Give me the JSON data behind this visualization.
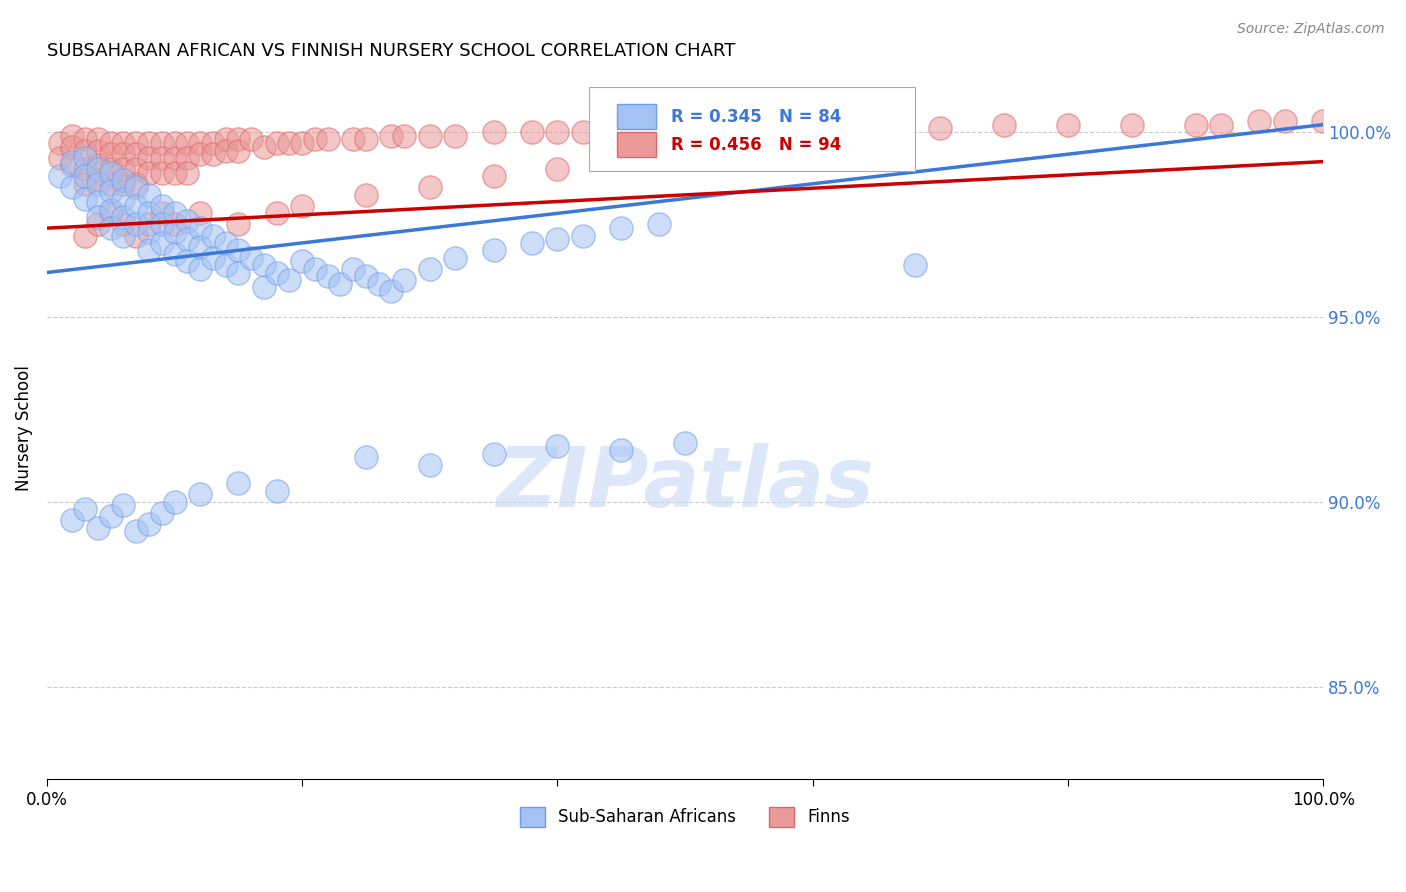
{
  "title": "SUBSAHARAN AFRICAN VS FINNISH NURSERY SCHOOL CORRELATION CHART",
  "source": "Source: ZipAtlas.com",
  "ylabel": "Nursery School",
  "ytick_values": [
    0.85,
    0.9,
    0.95,
    1.0
  ],
  "ytick_labels": [
    "85.0%",
    "90.0%",
    "95.0%",
    "100.0%"
  ],
  "xlim": [
    0.0,
    1.0
  ],
  "ylim": [
    0.825,
    1.015
  ],
  "legend_r_blue": "R = 0.345",
  "legend_n_blue": "N = 84",
  "legend_r_pink": "R = 0.456",
  "legend_n_pink": "N = 94",
  "legend_label_blue": "Sub-Saharan Africans",
  "legend_label_pink": "Finns",
  "blue_color": "#a4c2f4",
  "pink_color": "#ea9999",
  "blue_edge_color": "#6d9eeb",
  "pink_edge_color": "#e06666",
  "blue_line_color": "#3c78d8",
  "pink_line_color": "#cc0000",
  "text_blue": "#3c78d8",
  "text_pink": "#cc0000",
  "watermark": "ZIPatlas",
  "blue_scatter_x": [
    0.01,
    0.02,
    0.02,
    0.03,
    0.03,
    0.03,
    0.04,
    0.04,
    0.04,
    0.04,
    0.05,
    0.05,
    0.05,
    0.05,
    0.06,
    0.06,
    0.06,
    0.06,
    0.07,
    0.07,
    0.07,
    0.08,
    0.08,
    0.08,
    0.08,
    0.09,
    0.09,
    0.09,
    0.1,
    0.1,
    0.1,
    0.11,
    0.11,
    0.11,
    0.12,
    0.12,
    0.12,
    0.13,
    0.13,
    0.14,
    0.14,
    0.15,
    0.15,
    0.16,
    0.17,
    0.17,
    0.18,
    0.19,
    0.2,
    0.21,
    0.22,
    0.23,
    0.24,
    0.25,
    0.26,
    0.27,
    0.28,
    0.3,
    0.32,
    0.35,
    0.38,
    0.4,
    0.42,
    0.45,
    0.48,
    0.25,
    0.3,
    0.35,
    0.4,
    0.45,
    0.5,
    0.68,
    0.02,
    0.03,
    0.04,
    0.05,
    0.06,
    0.07,
    0.08,
    0.09,
    0.1,
    0.12,
    0.15,
    0.18
  ],
  "blue_scatter_y": [
    0.988,
    0.992,
    0.985,
    0.993,
    0.988,
    0.982,
    0.99,
    0.986,
    0.981,
    0.977,
    0.989,
    0.984,
    0.979,
    0.974,
    0.987,
    0.982,
    0.977,
    0.972,
    0.985,
    0.98,
    0.975,
    0.983,
    0.978,
    0.973,
    0.968,
    0.98,
    0.975,
    0.97,
    0.978,
    0.973,
    0.967,
    0.976,
    0.971,
    0.965,
    0.974,
    0.969,
    0.963,
    0.972,
    0.966,
    0.97,
    0.964,
    0.968,
    0.962,
    0.966,
    0.964,
    0.958,
    0.962,
    0.96,
    0.965,
    0.963,
    0.961,
    0.959,
    0.963,
    0.961,
    0.959,
    0.957,
    0.96,
    0.963,
    0.966,
    0.968,
    0.97,
    0.971,
    0.972,
    0.974,
    0.975,
    0.912,
    0.91,
    0.913,
    0.915,
    0.914,
    0.916,
    0.964,
    0.895,
    0.898,
    0.893,
    0.896,
    0.899,
    0.892,
    0.894,
    0.897,
    0.9,
    0.902,
    0.905,
    0.903
  ],
  "pink_scatter_x": [
    0.01,
    0.01,
    0.02,
    0.02,
    0.02,
    0.03,
    0.03,
    0.03,
    0.03,
    0.04,
    0.04,
    0.04,
    0.04,
    0.05,
    0.05,
    0.05,
    0.05,
    0.06,
    0.06,
    0.06,
    0.06,
    0.07,
    0.07,
    0.07,
    0.07,
    0.08,
    0.08,
    0.08,
    0.09,
    0.09,
    0.09,
    0.1,
    0.1,
    0.1,
    0.11,
    0.11,
    0.11,
    0.12,
    0.12,
    0.13,
    0.13,
    0.14,
    0.14,
    0.15,
    0.15,
    0.16,
    0.17,
    0.18,
    0.19,
    0.2,
    0.21,
    0.22,
    0.24,
    0.25,
    0.27,
    0.28,
    0.3,
    0.32,
    0.35,
    0.38,
    0.4,
    0.42,
    0.45,
    0.48,
    0.5,
    0.55,
    0.6,
    0.65,
    0.7,
    0.75,
    0.8,
    0.85,
    0.9,
    0.92,
    0.95,
    0.97,
    1.0,
    0.03,
    0.04,
    0.05,
    0.06,
    0.07,
    0.08,
    0.09,
    0.1,
    0.12,
    0.15,
    0.18,
    0.2,
    0.25,
    0.3,
    0.35,
    0.4,
    0.5
  ],
  "pink_scatter_y": [
    0.997,
    0.993,
    0.999,
    0.996,
    0.991,
    0.998,
    0.995,
    0.99,
    0.986,
    0.998,
    0.995,
    0.991,
    0.987,
    0.997,
    0.994,
    0.99,
    0.986,
    0.997,
    0.994,
    0.99,
    0.986,
    0.997,
    0.994,
    0.99,
    0.986,
    0.997,
    0.993,
    0.989,
    0.997,
    0.993,
    0.989,
    0.997,
    0.993,
    0.989,
    0.997,
    0.993,
    0.989,
    0.997,
    0.994,
    0.997,
    0.994,
    0.998,
    0.995,
    0.998,
    0.995,
    0.998,
    0.996,
    0.997,
    0.997,
    0.997,
    0.998,
    0.998,
    0.998,
    0.998,
    0.999,
    0.999,
    0.999,
    0.999,
    1.0,
    1.0,
    1.0,
    1.0,
    1.001,
    1.001,
    1.001,
    1.001,
    1.001,
    1.001,
    1.001,
    1.002,
    1.002,
    1.002,
    1.002,
    1.002,
    1.003,
    1.003,
    1.003,
    0.972,
    0.975,
    0.978,
    0.975,
    0.972,
    0.975,
    0.978,
    0.975,
    0.978,
    0.975,
    0.978,
    0.98,
    0.983,
    0.985,
    0.988,
    0.99,
    0.995
  ],
  "blue_trend_x0": 0.0,
  "blue_trend_y0": 0.962,
  "blue_trend_x1": 1.0,
  "blue_trend_y1": 1.002,
  "pink_trend_x0": 0.0,
  "pink_trend_y0": 0.974,
  "pink_trend_x1": 1.0,
  "pink_trend_y1": 0.992
}
